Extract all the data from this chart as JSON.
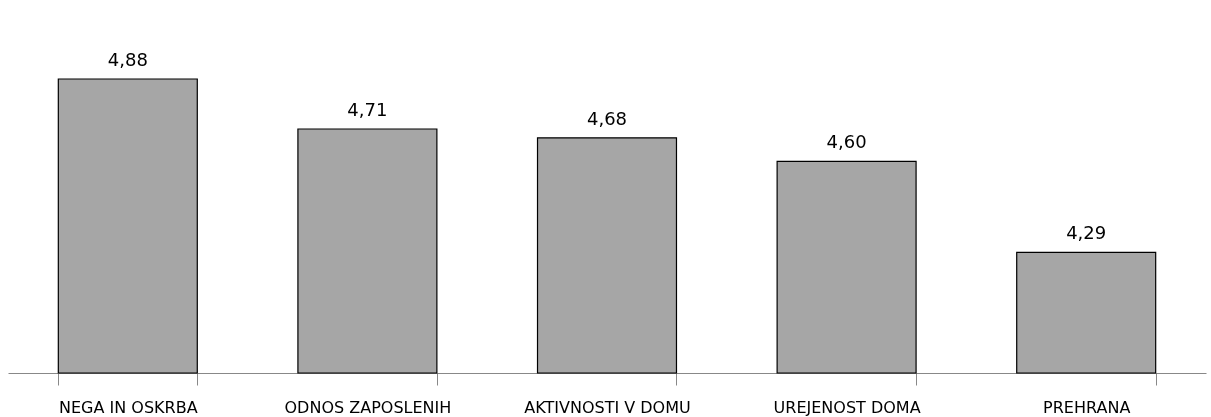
{
  "chart_data": {
    "type": "bar",
    "categories": [
      "NEGA IN OSKRBA",
      "ODNOS ZAPOSLENIH",
      "AKTIVNOSTI V DOMU",
      "UREJENOST DOMA",
      "PREHRANA"
    ],
    "values": [
      4.88,
      4.71,
      4.68,
      4.6,
      4.29
    ],
    "value_labels": [
      "4,88",
      "4,71",
      "4,68",
      "4,60",
      "4,29"
    ],
    "color": "#a6a6a6",
    "ylim": [
      3.88,
      4.88
    ],
    "tick_labels": "x",
    "grid": false
  }
}
